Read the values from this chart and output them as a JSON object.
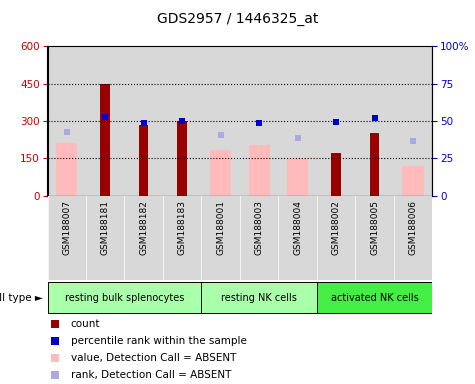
{
  "title": "GDS2957 / 1446325_at",
  "samples": [
    "GSM188007",
    "GSM188181",
    "GSM188182",
    "GSM188183",
    "GSM188001",
    "GSM188003",
    "GSM188004",
    "GSM188002",
    "GSM188005",
    "GSM188006"
  ],
  "count_values": [
    null,
    450,
    285,
    300,
    null,
    null,
    null,
    170,
    250,
    null
  ],
  "value_absent": [
    210,
    null,
    null,
    null,
    185,
    205,
    150,
    null,
    null,
    118
  ],
  "percentile_rank_left": [
    null,
    315,
    290,
    300,
    null,
    290,
    null,
    295,
    310,
    null
  ],
  "rank_absent_left": [
    255,
    null,
    null,
    null,
    245,
    null,
    230,
    null,
    null,
    218
  ],
  "ylim_left": [
    0,
    600
  ],
  "yticks_left": [
    0,
    150,
    300,
    450,
    600
  ],
  "yticks_right": [
    0,
    25,
    50,
    75,
    100
  ],
  "yticklabels_right": [
    "0",
    "25",
    "50",
    "75",
    "100%"
  ],
  "hlines": [
    150,
    300,
    450
  ],
  "cell_type_groups": [
    {
      "label": "resting bulk splenocytes",
      "start": 0,
      "end": 3,
      "color": "#aaffaa"
    },
    {
      "label": "resting NK cells",
      "start": 4,
      "end": 6,
      "color": "#aaffaa"
    },
    {
      "label": "activated NK cells",
      "start": 7,
      "end": 9,
      "color": "#44ee44"
    }
  ],
  "count_color": "#990000",
  "value_absent_color": "#ffbbbb",
  "percentile_color": "#0000cc",
  "rank_absent_color": "#aaaadd",
  "col_bg_color": "#d8d8d8",
  "plot_bg": "#ffffff",
  "left_tick_color": "#cc0000",
  "right_tick_color": "#0000cc",
  "title_fontsize": 10,
  "tick_fontsize": 7.5,
  "sample_fontsize": 6.5,
  "legend_fontsize": 7.5
}
